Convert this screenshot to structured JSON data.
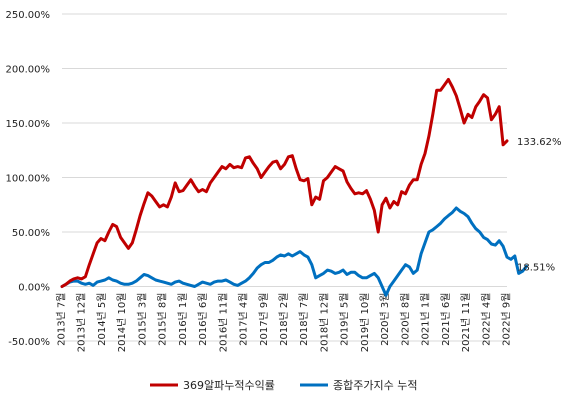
{
  "chart_data": {
    "type": "line",
    "x_labels": [
      "2013년 7월",
      "2013년 12월",
      "2014년 5월",
      "2014년 10월",
      "2015년 3월",
      "2015년 8월",
      "2016년 1월",
      "2016년 6월",
      "2016년 11월",
      "2017년 4월",
      "2017년 9월",
      "2018년 2월",
      "2018년 7월",
      "2018년 12월",
      "2019년 5월",
      "2019년 10월",
      "2020년 3월",
      "2020년 8월",
      "2021년 1월",
      "2021년 6월",
      "2021년 11월",
      "2022년 4월",
      "2022년 9월"
    ],
    "y_ticks": [
      "250.00%",
      "200.00%",
      "150.00%",
      "100.00%",
      "50.00%",
      "0.00%",
      "-50.00%"
    ],
    "ylim": [
      -50,
      250
    ],
    "series": [
      {
        "name": "369알파누적수익률",
        "color": "#c00000",
        "end_label": "133.62%",
        "values": [
          0,
          2,
          5,
          7,
          8,
          7,
          9,
          20,
          30,
          40,
          44,
          42,
          50,
          57,
          55,
          45,
          40,
          35,
          40,
          52,
          65,
          76,
          86,
          83,
          78,
          73,
          75,
          73,
          82,
          95,
          87,
          88,
          93,
          98,
          92,
          87,
          89,
          87,
          95,
          100,
          105,
          110,
          108,
          112,
          109,
          110,
          109,
          118,
          119,
          113,
          108,
          100,
          105,
          110,
          114,
          115,
          108,
          112,
          119,
          120,
          108,
          98,
          97,
          99,
          75,
          82,
          80,
          97,
          100,
          105,
          110,
          108,
          106,
          96,
          90,
          85,
          86,
          85,
          88,
          80,
          70,
          50,
          75,
          81,
          72,
          78,
          75,
          87,
          85,
          93,
          98,
          98,
          112,
          122,
          138,
          158,
          180,
          180,
          185,
          190,
          183,
          175,
          163,
          150,
          158,
          155,
          165,
          170,
          176,
          173,
          153,
          158,
          165,
          130,
          133.62
        ]
      },
      {
        "name": "종합주가지수 누적",
        "color": "#0070c0",
        "end_label": "18.51%",
        "values": [
          0,
          2,
          4,
          5,
          5,
          3,
          2,
          3,
          1,
          4,
          5,
          6,
          8,
          6,
          5,
          3,
          2,
          2,
          3,
          5,
          8,
          11,
          10,
          8,
          6,
          5,
          4,
          3,
          2,
          4,
          5,
          3,
          2,
          1,
          0,
          2,
          4,
          3,
          2,
          4,
          5,
          5,
          6,
          4,
          2,
          1,
          3,
          5,
          8,
          12,
          17,
          20,
          22,
          22,
          24,
          27,
          29,
          28,
          30,
          28,
          30,
          32,
          29,
          27,
          20,
          8,
          10,
          12,
          15,
          14,
          12,
          13,
          15,
          11,
          13,
          13,
          10,
          8,
          8,
          10,
          12,
          8,
          0,
          -8,
          0,
          5,
          10,
          15,
          20,
          18,
          12,
          15,
          30,
          40,
          50,
          52,
          55,
          58,
          62,
          65,
          68,
          72,
          69,
          67,
          64,
          58,
          53,
          50,
          45,
          43,
          39,
          38,
          42,
          37,
          27,
          25,
          28,
          12,
          14,
          18.51
        ]
      }
    ]
  }
}
